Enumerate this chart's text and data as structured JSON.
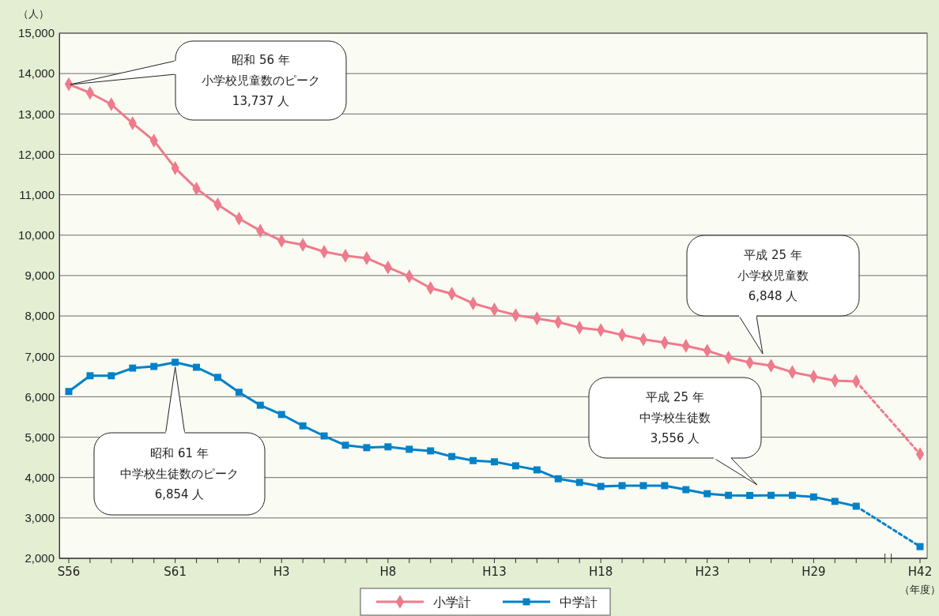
{
  "chart_data": {
    "type": "line",
    "ylabel": "（人）",
    "xlabel": "（年度）",
    "categories": [
      "S56",
      null,
      null,
      null,
      null,
      "S61",
      null,
      null,
      null,
      null,
      "H3",
      null,
      null,
      null,
      null,
      "H8",
      null,
      null,
      null,
      null,
      "H13",
      null,
      null,
      null,
      null,
      "H18",
      null,
      null,
      null,
      null,
      "H23",
      null,
      null,
      null,
      null,
      "H29",
      null,
      null,
      null,
      null,
      "H42"
    ],
    "series": [
      {
        "name": "小学計",
        "color": "#ee7b8c",
        "marker": "diamond",
        "line_style": "solid",
        "values": [
          13737,
          13520,
          13240,
          12770,
          12340,
          11660,
          11150,
          10760,
          10410,
          10110,
          9860,
          9760,
          9590,
          9490,
          9430,
          9200,
          8980,
          8690,
          8550,
          8310,
          8160,
          8020,
          7940,
          7850,
          7710,
          7650,
          7530,
          7420,
          7340,
          7260,
          7140,
          6970,
          6848,
          6770,
          6610,
          6500,
          6400,
          6380,
          null,
          null,
          null
        ]
      },
      {
        "name": "中学計",
        "color": "#0081c9",
        "marker": "square",
        "line_style": "solid",
        "values": [
          6130,
          6520,
          6520,
          6710,
          6750,
          6854,
          6730,
          6480,
          6110,
          5790,
          5560,
          5280,
          5030,
          4800,
          4740,
          4760,
          4700,
          4660,
          4520,
          4420,
          4390,
          4290,
          4190,
          3970,
          3880,
          3780,
          3800,
          3800,
          3800,
          3700,
          3600,
          3560,
          3556,
          3560,
          3560,
          3520,
          3410,
          3290,
          null,
          null,
          null
        ]
      },
      {
        "color": "#ee7b8c",
        "marker": "diamond",
        "line_style": "dotted",
        "values": [
          null,
          null,
          null,
          null,
          null,
          null,
          null,
          null,
          null,
          null,
          null,
          null,
          null,
          null,
          null,
          null,
          null,
          null,
          null,
          null,
          null,
          null,
          null,
          null,
          null,
          null,
          null,
          null,
          null,
          null,
          null,
          null,
          null,
          null,
          null,
          null,
          null,
          6380,
          null,
          null,
          4580
        ]
      },
      {
        "color": "#0081c9",
        "marker": "square",
        "line_style": "dotted",
        "values": [
          null,
          null,
          null,
          null,
          null,
          null,
          null,
          null,
          null,
          null,
          null,
          null,
          null,
          null,
          null,
          null,
          null,
          null,
          null,
          null,
          null,
          null,
          null,
          null,
          null,
          null,
          null,
          null,
          null,
          null,
          null,
          null,
          null,
          null,
          null,
          null,
          null,
          3290,
          null,
          null,
          2290
        ]
      }
    ],
    "ylim": [
      2000,
      15000
    ],
    "yticks": [
      {
        "value": 2000,
        "label": "2,000"
      },
      {
        "value": 3000,
        "label": "3,000"
      },
      {
        "value": 4000,
        "label": "4,000"
      },
      {
        "value": 5000,
        "label": "5,000"
      },
      {
        "value": 6000,
        "label": "6,000"
      },
      {
        "value": 7000,
        "label": "7,000"
      },
      {
        "value": 8000,
        "label": "8,000"
      },
      {
        "value": 9000,
        "label": "9,000"
      },
      {
        "value": 10000,
        "label": "10,000"
      },
      {
        "value": 11000,
        "label": "11,000"
      },
      {
        "value": 12000,
        "label": "12,000"
      },
      {
        "value": 13000,
        "label": "13,000"
      },
      {
        "value": 14000,
        "label": "14,000"
      },
      {
        "value": 15000,
        "label": "15,000"
      }
    ],
    "grid": "y",
    "legend": "bottom",
    "annotations": [
      "昭和 56 年小学校児童数のピーク13,737 人",
      {
        "text": "昭和 61 年中学校生徒数のピーク6,854 人",
        "x": "S61",
        "y": 6854
      },
      "平成 25 年小学校児童数6,848 人",
      "平成 25 年中学校生徒数3,556 人"
    ]
  }
}
